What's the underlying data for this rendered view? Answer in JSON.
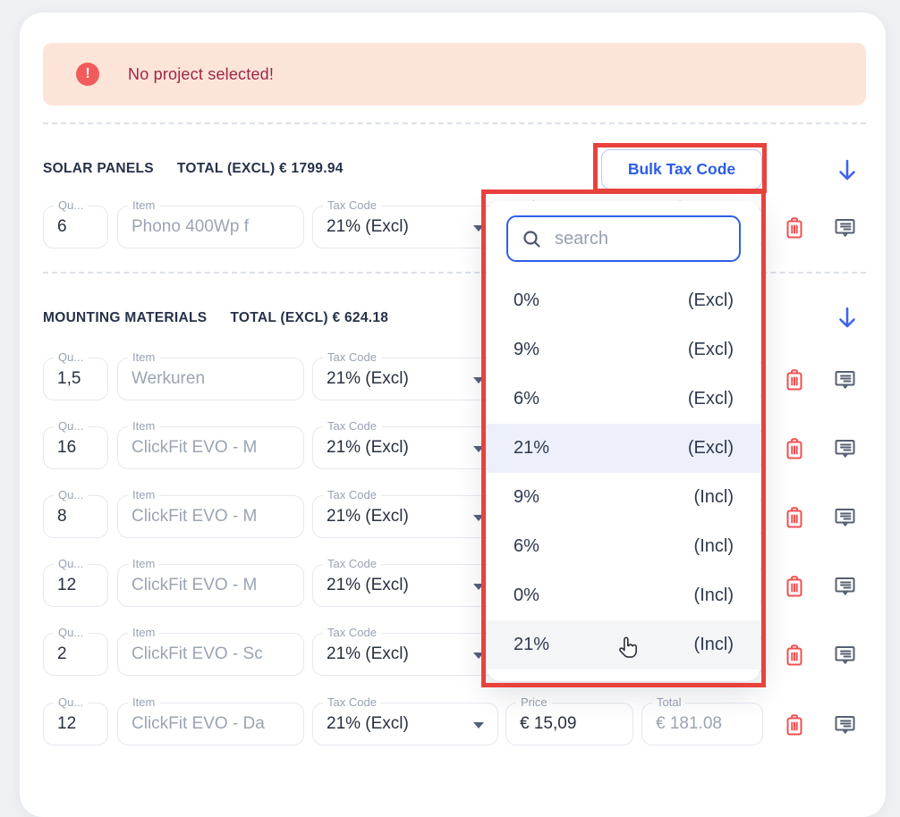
{
  "banner": {
    "message": "No project selected!",
    "alert_icon": "exclamation-circle"
  },
  "field_labels": {
    "qty": "Qu...",
    "item": "Item",
    "tax_code": "Tax Code",
    "price": "Price",
    "total": "Total"
  },
  "sections": [
    {
      "title": "SOLAR PANELS",
      "total": "TOTAL (EXCL) € 1799.94",
      "bulk_button": "Bulk Tax Code",
      "rows": [
        {
          "qty": "6",
          "item": "Phono 400Wp f",
          "tax_code": "21% (Excl)"
        }
      ]
    },
    {
      "title": "MOUNTING MATERIALS",
      "total": "TOTAL (EXCL) € 624.18",
      "rows": [
        {
          "qty": "1,5",
          "item": "Werkuren",
          "tax_code": "21% (Excl)"
        },
        {
          "qty": "16",
          "item": "ClickFit EVO - M",
          "tax_code": "21% (Excl)"
        },
        {
          "qty": "8",
          "item": "ClickFit EVO - M",
          "tax_code": "21% (Excl)"
        },
        {
          "qty": "12",
          "item": "ClickFit EVO - M",
          "tax_code": "21% (Excl)"
        },
        {
          "qty": "2",
          "item": "ClickFit EVO - Sc",
          "tax_code": "21% (Excl)"
        },
        {
          "qty": "12",
          "item": "ClickFit EVO - Da",
          "tax_code": "21% (Excl)",
          "price": "€ 15,09",
          "total": "€ 181.08"
        }
      ]
    }
  ],
  "tax_dropdown": {
    "search_placeholder": "search",
    "options": [
      {
        "rate": "0%",
        "mode": "(Excl)"
      },
      {
        "rate": "9%",
        "mode": "(Excl)"
      },
      {
        "rate": "6%",
        "mode": "(Excl)"
      },
      {
        "rate": "21%",
        "mode": "(Excl)",
        "state": "selected"
      },
      {
        "rate": "9%",
        "mode": "(Incl)"
      },
      {
        "rate": "6%",
        "mode": "(Incl)"
      },
      {
        "rate": "0%",
        "mode": "(Incl)"
      },
      {
        "rate": "21%",
        "mode": "(Incl)",
        "state": "hovered"
      }
    ]
  },
  "colors": {
    "accent_blue": "#2e5ce6",
    "danger_red": "#f15050",
    "annotation_red": "#e8423d",
    "banner_bg": "#fce5d8",
    "banner_text": "#a02446",
    "selected_option_bg": "#edf0fb",
    "hover_option_bg": "#f4f5f7"
  }
}
